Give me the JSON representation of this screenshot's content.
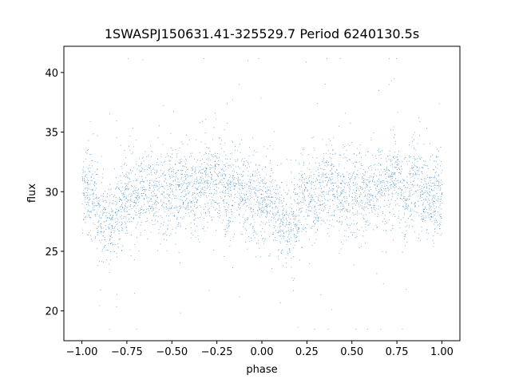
{
  "chart_data": {
    "type": "scatter",
    "title": "1SWASPJ150631.41-325529.7 Period 6240130.5s",
    "xlabel": "phase",
    "ylabel": "flux",
    "xlim": [
      -1.1,
      1.1
    ],
    "ylim": [
      17.5,
      42.2
    ],
    "grid": false,
    "marker_color": "#1f77b4",
    "x_ticks": [
      -1.0,
      -0.75,
      -0.5,
      -0.25,
      0.0,
      0.25,
      0.5,
      0.75,
      1.0
    ],
    "x_tick_labels": [
      "−1.00",
      "−0.75",
      "−0.50",
      "−0.25",
      "0.00",
      "0.25",
      "0.50",
      "0.75",
      "1.00"
    ],
    "y_ticks": [
      20,
      25,
      30,
      35,
      40
    ],
    "y_tick_labels": [
      "20",
      "25",
      "30",
      "35",
      "40"
    ],
    "series": [
      {
        "points_note_free": true,
        "profile": [
          [
            -1.0,
            30.0
          ],
          [
            -0.95,
            30.2
          ],
          [
            -0.9,
            27.8
          ],
          [
            -0.85,
            27.0
          ],
          [
            -0.8,
            28.0
          ],
          [
            -0.75,
            30.0
          ],
          [
            -0.7,
            29.4
          ],
          [
            -0.65,
            30.6
          ],
          [
            -0.6,
            30.2
          ],
          [
            -0.55,
            29.8
          ],
          [
            -0.5,
            30.2
          ],
          [
            -0.45,
            30.0
          ],
          [
            -0.4,
            30.0
          ],
          [
            -0.35,
            30.3
          ],
          [
            -0.3,
            30.6
          ],
          [
            -0.25,
            31.2
          ],
          [
            -0.2,
            29.8
          ],
          [
            -0.15,
            30.6
          ],
          [
            -0.1,
            29.6
          ],
          [
            -0.05,
            29.4
          ],
          [
            0.0,
            29.6
          ],
          [
            0.05,
            29.0
          ],
          [
            0.1,
            27.5
          ],
          [
            0.15,
            27.2
          ],
          [
            0.2,
            28.2
          ],
          [
            0.25,
            30.0
          ],
          [
            0.3,
            29.4
          ],
          [
            0.35,
            30.6
          ],
          [
            0.4,
            30.2
          ],
          [
            0.45,
            29.8
          ],
          [
            0.5,
            30.2
          ],
          [
            0.55,
            30.0
          ],
          [
            0.6,
            30.0
          ],
          [
            0.65,
            30.3
          ],
          [
            0.7,
            30.6
          ],
          [
            0.75,
            31.2
          ],
          [
            0.8,
            29.8
          ],
          [
            0.85,
            30.6
          ],
          [
            0.9,
            29.6
          ],
          [
            0.95,
            29.4
          ],
          [
            1.0,
            29.6
          ]
        ],
        "spread": 2.2,
        "count": 9000
      }
    ]
  }
}
